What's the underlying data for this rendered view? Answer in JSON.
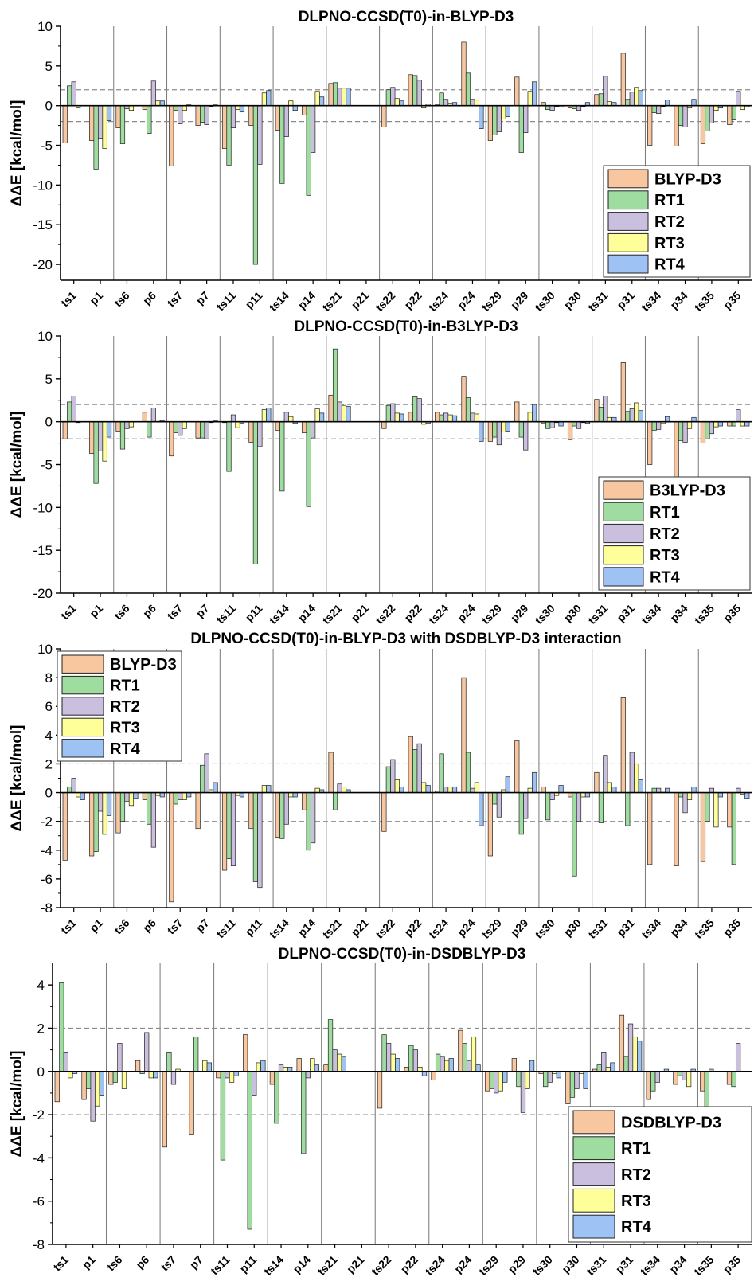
{
  "figure": {
    "categories": [
      "ts1",
      "p1",
      "ts6",
      "p6",
      "ts7",
      "p7",
      "ts11",
      "p11",
      "ts14",
      "p14",
      "ts21",
      "p21",
      "ts22",
      "p22",
      "ts24",
      "p24",
      "ts29",
      "p29",
      "ts30",
      "p30",
      "ts31",
      "p31",
      "ts34",
      "p34",
      "ts35",
      "p35"
    ],
    "series_colors": [
      "#f9c79f",
      "#9edca0",
      "#cbbfe0",
      "#ffff99",
      "#9fc2f5"
    ],
    "ylabel": "ΔΔE [kcal/mol]",
    "threshold_lines": [
      2,
      -2
    ]
  },
  "chart_data": [
    {
      "type": "bar",
      "title": "DLPNO-CCSD(T0)-in-BLYP-D3",
      "ylabel": "ΔΔE [kcal/mol]",
      "ylim": [
        -22,
        10
      ],
      "yticks": [
        10,
        5,
        0,
        -5,
        -10,
        -15,
        -20
      ],
      "legend_position": "bottom-right",
      "categories": [
        "ts1",
        "p1",
        "ts6",
        "p6",
        "ts7",
        "p7",
        "ts11",
        "p11",
        "ts14",
        "p14",
        "ts21",
        "p21",
        "ts22",
        "p22",
        "ts24",
        "p24",
        "ts29",
        "p29",
        "ts30",
        "p30",
        "ts31",
        "p31",
        "ts34",
        "p34",
        "ts35",
        "p35"
      ],
      "series": [
        {
          "name": "BLYP-D3",
          "values": [
            -4.7,
            -4.4,
            -2.8,
            -0.5,
            -7.6,
            -2.5,
            -5.4,
            -2.5,
            -3.1,
            -1.2,
            2.8,
            0.0,
            -2.7,
            3.9,
            0.1,
            8.0,
            -4.4,
            3.6,
            0.4,
            -0.3,
            1.4,
            6.6,
            -5.0,
            -5.1,
            -4.8,
            -2.4
          ]
        },
        {
          "name": "RT1",
          "values": [
            2.5,
            -8.0,
            -4.8,
            -3.5,
            -0.6,
            -2.1,
            -7.5,
            -20.0,
            -9.8,
            -11.3,
            2.9,
            0.0,
            2.0,
            3.8,
            1.6,
            4.1,
            -3.7,
            -5.9,
            -0.5,
            -0.4,
            1.5,
            0.8,
            -0.9,
            -2.5,
            -3.2,
            -1.8
          ]
        },
        {
          "name": "RT2",
          "values": [
            3.0,
            -4.1,
            -0.4,
            3.1,
            -2.3,
            -2.4,
            -2.8,
            -7.4,
            -3.9,
            -5.9,
            2.2,
            0.0,
            2.3,
            3.2,
            0.8,
            0.8,
            -3.3,
            -3.4,
            -0.6,
            -0.6,
            3.7,
            1.7,
            -1.0,
            -2.7,
            -2.2,
            1.8
          ]
        },
        {
          "name": "RT3",
          "values": [
            -0.3,
            -5.4,
            -0.6,
            0.6,
            -0.6,
            -0.1,
            -0.5,
            1.6,
            0.6,
            1.8,
            2.2,
            0.0,
            0.9,
            -0.3,
            0.3,
            0.7,
            -1.7,
            1.8,
            -0.1,
            -0.1,
            0.5,
            2.3,
            -0.1,
            -0.3,
            -0.6,
            -0.5
          ]
        },
        {
          "name": "RT4",
          "values": [
            0.0,
            -1.9,
            0.0,
            0.6,
            0.1,
            0.1,
            -0.8,
            1.9,
            -0.6,
            1.1,
            2.2,
            0.0,
            0.6,
            0.2,
            0.4,
            -2.9,
            -1.4,
            3.0,
            -0.2,
            0.4,
            0.4,
            1.9,
            0.7,
            0.8,
            -0.3,
            -0.2
          ]
        }
      ]
    },
    {
      "type": "bar",
      "title": "DLPNO-CCSD(T0)-in-B3LYP-D3",
      "ylabel": "ΔΔE [kcal/mol]",
      "ylim": [
        -20,
        10
      ],
      "yticks": [
        10,
        5,
        0,
        -5,
        -10,
        -15,
        -20
      ],
      "legend_position": "bottom-right",
      "categories": [
        "ts1",
        "p1",
        "ts6",
        "p6",
        "ts7",
        "p7",
        "ts11",
        "p11",
        "ts14",
        "p14",
        "ts21",
        "p21",
        "ts22",
        "p22",
        "ts24",
        "p24",
        "ts29",
        "p29",
        "ts30",
        "p30",
        "ts31",
        "p31",
        "ts34",
        "p34",
        "ts35",
        "p35"
      ],
      "series": [
        {
          "name": "B3LYP-D3",
          "values": [
            -2.0,
            -3.7,
            -1.1,
            1.1,
            -4.0,
            -1.9,
            -0.1,
            -2.4,
            -1.0,
            -1.3,
            3.1,
            0.0,
            -0.8,
            1.1,
            1.1,
            5.3,
            -2.3,
            2.3,
            -0.2,
            -2.1,
            2.6,
            6.9,
            -5.0,
            -6.7,
            -2.5,
            -0.5
          ]
        },
        {
          "name": "RT1",
          "values": [
            2.3,
            -7.2,
            -3.2,
            -1.8,
            -1.3,
            -1.9,
            -5.8,
            -16.6,
            -8.1,
            -9.9,
            8.5,
            0.0,
            1.9,
            2.9,
            0.8,
            2.8,
            -1.8,
            -1.8,
            -0.8,
            -0.5,
            1.7,
            1.2,
            -1.0,
            -2.2,
            -2.0,
            -0.5
          ]
        },
        {
          "name": "RT2",
          "values": [
            3.0,
            -3.4,
            -0.8,
            1.6,
            -1.6,
            -2.0,
            0.8,
            -2.9,
            1.1,
            -1.9,
            2.3,
            0.0,
            2.1,
            2.7,
            1.0,
            1.0,
            -2.7,
            -3.3,
            -0.7,
            -0.8,
            3.0,
            1.5,
            -0.9,
            -2.4,
            -1.4,
            1.4
          ]
        },
        {
          "name": "RT3",
          "values": [
            -0.1,
            -4.6,
            -0.6,
            0.2,
            -0.8,
            -0.1,
            -0.7,
            1.4,
            0.6,
            1.5,
            1.9,
            0.0,
            1.0,
            -0.3,
            0.8,
            0.9,
            -1.2,
            1.1,
            -0.1,
            -0.1,
            0.5,
            2.2,
            -0.2,
            -0.8,
            -0.6,
            -0.5
          ]
        },
        {
          "name": "RT4",
          "values": [
            0.0,
            -1.8,
            0.0,
            0.1,
            0.0,
            0.1,
            -0.2,
            1.6,
            -0.2,
            1.0,
            1.8,
            0.0,
            0.9,
            -0.2,
            0.7,
            -2.3,
            -1.1,
            2.0,
            -0.5,
            -0.2,
            0.5,
            1.3,
            0.6,
            0.5,
            -0.5,
            -0.5
          ]
        }
      ]
    },
    {
      "type": "bar",
      "title": "DLPNO-CCSD(T0)-in-BLYP-D3 with DSDBLYP-D3 interaction",
      "ylabel": "ΔΔE [kcal/mol]",
      "ylim": [
        -8,
        10
      ],
      "yticks": [
        10,
        8,
        6,
        4,
        2,
        0,
        -2,
        -4,
        -6,
        -8
      ],
      "legend_position": "top-left",
      "categories": [
        "ts1",
        "p1",
        "ts6",
        "p6",
        "ts7",
        "p7",
        "ts11",
        "p11",
        "ts14",
        "p14",
        "ts21",
        "p21",
        "ts22",
        "p22",
        "ts24",
        "p24",
        "ts29",
        "p29",
        "ts30",
        "p30",
        "ts31",
        "p31",
        "ts34",
        "p34",
        "ts35",
        "p35"
      ],
      "series": [
        {
          "name": "BLYP-D3",
          "values": [
            -4.7,
            -4.4,
            -2.8,
            -0.5,
            -7.6,
            -2.5,
            -5.4,
            -2.5,
            -3.1,
            -1.2,
            2.8,
            0.0,
            -2.7,
            3.9,
            0.1,
            8.0,
            -4.4,
            3.6,
            0.4,
            -0.3,
            1.4,
            6.6,
            -5.0,
            -5.1,
            -4.8,
            -2.4
          ]
        },
        {
          "name": "RT1",
          "values": [
            0.4,
            -4.1,
            -2.0,
            -2.2,
            -0.8,
            1.9,
            -4.6,
            -6.2,
            -3.2,
            -4.0,
            -1.2,
            0.0,
            1.8,
            3.0,
            2.7,
            2.8,
            -0.8,
            -2.9,
            -1.9,
            -5.8,
            -2.1,
            -2.3,
            0.3,
            -0.3,
            -2.0,
            -5.0
          ]
        },
        {
          "name": "RT2",
          "values": [
            1.0,
            -1.3,
            -0.6,
            -3.8,
            -0.5,
            2.7,
            -5.1,
            -6.6,
            -2.2,
            -3.5,
            0.6,
            0.0,
            2.3,
            3.4,
            0.4,
            0.3,
            -1.7,
            -1.8,
            -0.5,
            -2.0,
            2.6,
            2.8,
            0.3,
            -1.4,
            0.3,
            0.3
          ]
        },
        {
          "name": "RT3",
          "values": [
            -0.3,
            -2.9,
            -0.9,
            -0.2,
            -0.5,
            0.2,
            -0.2,
            0.5,
            -0.3,
            0.3,
            0.4,
            0.0,
            0.9,
            0.7,
            0.4,
            0.7,
            0.2,
            0.3,
            -0.2,
            -0.3,
            0.7,
            2.0,
            0.1,
            -0.5,
            -2.4,
            -0.1
          ]
        },
        {
          "name": "RT4",
          "values": [
            -0.5,
            -1.6,
            -0.4,
            -0.3,
            -0.3,
            0.7,
            -0.3,
            0.5,
            -0.3,
            0.2,
            0.2,
            0.0,
            0.4,
            0.5,
            0.4,
            -2.3,
            1.1,
            1.4,
            0.5,
            -0.3,
            0.4,
            0.9,
            0.3,
            0.4,
            -0.3,
            -0.4
          ]
        }
      ]
    },
    {
      "type": "bar",
      "title": "DLPNO-CCSD(T0)-in-DSDBLYP-D3",
      "ylabel": "ΔΔE [kcal/mol]",
      "ylim": [
        -8,
        5
      ],
      "yticks": [
        4,
        2,
        0,
        -2,
        -4,
        -6,
        -8
      ],
      "legend_position": "bottom-right",
      "categories": [
        "ts1",
        "p1",
        "ts6",
        "p6",
        "ts7",
        "p7",
        "ts11",
        "p11",
        "ts14",
        "p14",
        "ts21",
        "p21",
        "ts22",
        "p22",
        "ts24",
        "p24",
        "ts29",
        "p29",
        "ts30",
        "p30",
        "ts31",
        "p31",
        "ts34",
        "p34",
        "ts35",
        "p35"
      ],
      "series": [
        {
          "name": "DSDBLYP-D3",
          "values": [
            -1.4,
            -1.3,
            -0.6,
            0.5,
            -3.5,
            -2.9,
            -0.3,
            1.7,
            -0.6,
            0.6,
            0.3,
            0.0,
            -1.7,
            0.2,
            -0.4,
            1.9,
            -0.9,
            0.6,
            -0.1,
            -1.5,
            0.1,
            2.6,
            -1.3,
            -0.6,
            -0.9,
            -0.6
          ]
        },
        {
          "name": "RT1",
          "values": [
            4.1,
            -0.8,
            -0.5,
            -0.1,
            0.9,
            1.6,
            -4.1,
            -7.3,
            -2.4,
            -3.8,
            2.4,
            0.0,
            1.7,
            1.2,
            0.8,
            1.3,
            -0.8,
            -0.7,
            -0.7,
            -1.2,
            0.3,
            0.7,
            -0.9,
            -0.2,
            -1.8,
            -0.7
          ]
        },
        {
          "name": "RT2",
          "values": [
            0.9,
            -2.3,
            1.3,
            1.8,
            -0.6,
            0.0,
            -0.3,
            -1.1,
            0.3,
            -0.3,
            1.0,
            0.0,
            1.3,
            1.0,
            0.7,
            0.5,
            -1.0,
            -1.9,
            -0.5,
            -0.8,
            0.9,
            2.2,
            -0.5,
            -0.4,
            0.1,
            1.3
          ]
        },
        {
          "name": "RT3",
          "values": [
            -0.3,
            -1.6,
            -0.8,
            -0.3,
            0.1,
            0.5,
            -0.5,
            0.4,
            0.2,
            0.6,
            0.8,
            0.0,
            0.8,
            0.2,
            0.5,
            1.6,
            -0.9,
            -0.8,
            -0.1,
            -0.1,
            0.2,
            1.6,
            0.0,
            -0.7,
            0.0,
            0.0
          ]
        },
        {
          "name": "RT4",
          "values": [
            -0.1,
            -1.1,
            0.0,
            -0.3,
            0.0,
            0.4,
            -0.2,
            0.5,
            0.2,
            0.3,
            0.7,
            0.0,
            0.6,
            -0.2,
            0.6,
            0.3,
            -0.5,
            0.5,
            -0.3,
            -0.8,
            0.4,
            1.4,
            0.1,
            0.1,
            0.0,
            0.0
          ]
        }
      ]
    }
  ]
}
